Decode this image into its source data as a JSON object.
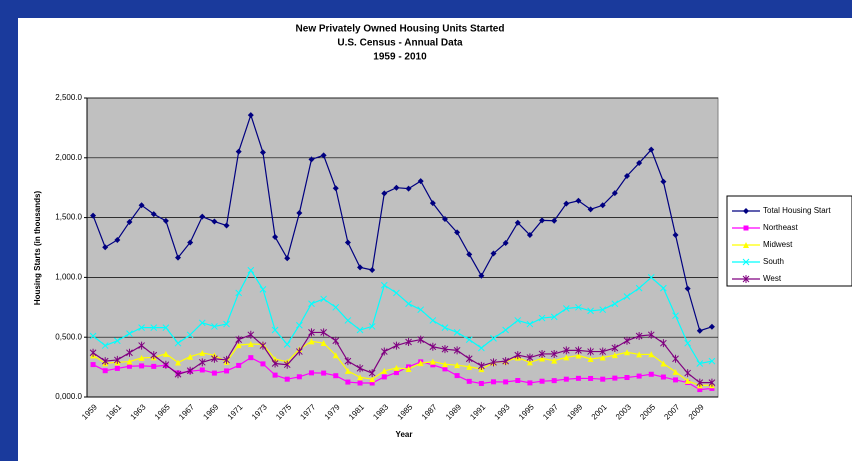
{
  "chart_data": {
    "type": "line",
    "title": "New Privately Owned Housing Units Started",
    "subtitle": "U.S. Census - Annual Data",
    "period": "1959 - 2010",
    "x_label": "Year",
    "y_label": "Housing Starts (in thousands)",
    "categories": [
      "1959",
      null,
      "1961",
      null,
      "1963",
      null,
      "1965",
      null,
      "1967",
      null,
      "1969",
      null,
      "1971",
      null,
      "1973",
      null,
      "1975",
      null,
      "1977",
      null,
      "1979",
      null,
      "1981",
      null,
      "1983",
      null,
      "1985",
      null,
      "1987",
      null,
      "1989",
      null,
      "1991",
      null,
      "1993",
      null,
      "1995",
      null,
      "1997",
      null,
      "1999",
      null,
      "2001",
      null,
      "2003",
      null,
      "2005",
      null,
      "2007",
      null,
      "2009",
      null
    ],
    "ylim": [
      0,
      2500
    ],
    "yticks": [
      {
        "value": 0,
        "label": "0,000.0"
      },
      {
        "value": 500,
        "label": "0,500.0"
      },
      {
        "value": 1000,
        "label": "1,000.0"
      },
      {
        "value": 1500,
        "label": "1,500.0"
      },
      {
        "value": 2000,
        "label": "2,000.0"
      },
      {
        "value": 2500,
        "label": "2,500.0"
      }
    ],
    "grid": true,
    "legend": "right",
    "series": [
      {
        "name": "Total Housing Start",
        "color": "#000080",
        "marker": "diamond",
        "values": [
          1517,
          1252,
          1313,
          1463,
          1603,
          1529,
          1473,
          1165,
          1292,
          1508,
          1467,
          1434,
          2052,
          2357,
          2045,
          1338,
          1160,
          1538,
          1987,
          2020,
          1745,
          1292,
          1084,
          1062,
          1703,
          1750,
          1742,
          1805,
          1621,
          1488,
          1376,
          1193,
          1014,
          1200,
          1288,
          1457,
          1354,
          1477,
          1474,
          1617,
          1641,
          1569,
          1603,
          1705,
          1848,
          1956,
          2068,
          1801,
          1355,
          906,
          554,
          587
        ]
      },
      {
        "name": "Northeast",
        "color": "#ff00ff",
        "marker": "square",
        "values": [
          271,
          220,
          239,
          257,
          260,
          256,
          264,
          201,
          216,
          226,
          200,
          218,
          264,
          329,
          277,
          183,
          149,
          169,
          202,
          200,
          178,
          125,
          117,
          117,
          168,
          204,
          252,
          294,
          269,
          235,
          179,
          131,
          113,
          127,
          126,
          138,
          118,
          132,
          137,
          149,
          156,
          155,
          149,
          158,
          163,
          175,
          190,
          167,
          143,
          121,
          62,
          72
        ]
      },
      {
        "name": "Midwest",
        "color": "#ffff00",
        "marker": "triangle",
        "values": [
          348,
          282,
          290,
          296,
          327,
          331,
          361,
          288,
          337,
          369,
          349,
          294,
          434,
          443,
          440,
          317,
          294,
          400,
          465,
          451,
          349,
          218,
          165,
          149,
          218,
          243,
          234,
          283,
          296,
          274,
          266,
          253,
          233,
          288,
          298,
          329,
          290,
          322,
          304,
          331,
          347,
          318,
          330,
          350,
          374,
          356,
          357,
          280,
          210,
          135,
          97,
          98
        ]
      },
      {
        "name": "South",
        "color": "#00ffff",
        "marker": "x",
        "values": [
          510,
          430,
          470,
          530,
          580,
          580,
          580,
          450,
          520,
          620,
          590,
          610,
          870,
          1060,
          900,
          560,
          440,
          600,
          780,
          820,
          750,
          640,
          560,
          590,
          935,
          870,
          780,
          730,
          640,
          580,
          540,
          480,
          410,
          490,
          560,
          640,
          610,
          660,
          670,
          740,
          750,
          720,
          730,
          780,
          840,
          910,
          1000,
          910,
          680,
          450,
          280,
          300
        ]
      },
      {
        "name": "West",
        "color": "#800080",
        "marker": "star",
        "values": [
          370,
          300,
          310,
          370,
          430,
          350,
          270,
          190,
          220,
          290,
          320,
          310,
          480,
          520,
          430,
          280,
          270,
          380,
          540,
          540,
          470,
          300,
          240,
          200,
          380,
          430,
          460,
          480,
          420,
          400,
          390,
          320,
          260,
          290,
          300,
          350,
          330,
          360,
          360,
          390,
          390,
          380,
          380,
          410,
          470,
          510,
          520,
          450,
          320,
          200,
          120,
          120
        ]
      }
    ]
  }
}
